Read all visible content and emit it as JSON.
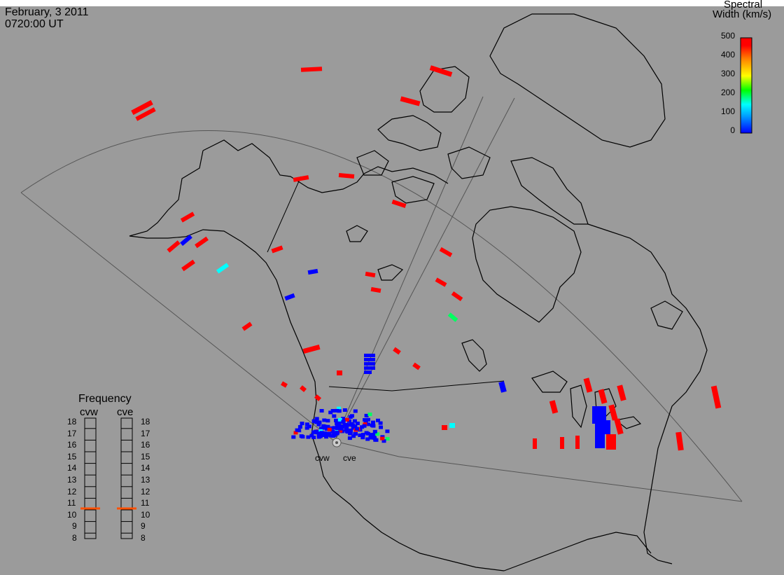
{
  "header": {
    "date": "February, 3 2011",
    "time": "0720:00 UT"
  },
  "colorbar": {
    "title_line1": "Spectral",
    "title_line2": "Width (km/s)",
    "ticks": [
      "500",
      "400",
      "300",
      "200",
      "100",
      "0"
    ],
    "range": [
      0,
      500
    ],
    "colors": [
      "#0000ff",
      "#00a0ff",
      "#00ffff",
      "#00ff00",
      "#ffff00",
      "#ff8000",
      "#ff0000"
    ]
  },
  "frequency_panel": {
    "title": "Frequency",
    "radars": [
      {
        "name": "cvw",
        "value_mhz": 10.8
      },
      {
        "name": "cve",
        "value_mhz": 10.8
      }
    ],
    "scale": [
      "18",
      "17",
      "16",
      "15",
      "14",
      "13",
      "12",
      "11",
      "10",
      "9",
      "8"
    ],
    "marker_color": "#ff5000"
  },
  "radar_sites": [
    {
      "name": "cvw"
    },
    {
      "name": "cve"
    }
  ],
  "echo_colors": {
    "low_width": "#0000ff",
    "high_width": "#ff0000",
    "mid_width": "#00ffff",
    "green": "#00ff60"
  }
}
